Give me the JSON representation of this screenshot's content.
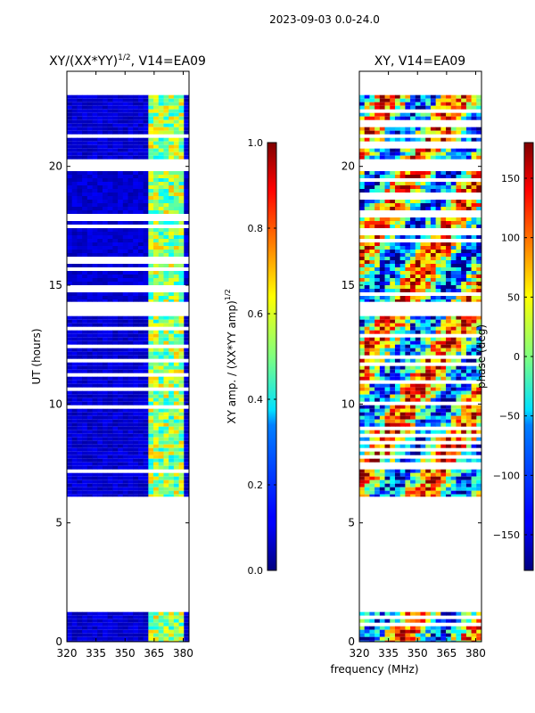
{
  "suptitle": "2023-09-03 0.0-24.0",
  "chart_data": [
    {
      "type": "heatmap",
      "title": "XY/(XX*YY)",
      "title_sup": "1/2",
      "title_suffix": ", V14=EA09",
      "xlabel": "",
      "ylabel": "UT (hours)",
      "xlim": [
        320,
        383
      ],
      "ylim": [
        0,
        24
      ],
      "xticks": [
        320,
        335,
        350,
        365,
        380
      ],
      "yticks": [
        0,
        5,
        10,
        15,
        20
      ],
      "data_ranges_hours": [
        [
          0.0,
          1.4
        ],
        [
          6.1,
          13.7
        ],
        [
          14.3,
          19.8
        ],
        [
          20.3,
          23.0
        ]
      ],
      "high_band_mhz": [
        363,
        381
      ],
      "colorbar": {
        "label": "XY amp. / (XX*YY amp)",
        "label_sup": "1/2",
        "range": [
          0.0,
          1.0
        ],
        "ticks": [
          "0.0",
          "0.2",
          "0.4",
          "0.6",
          "0.8",
          "1.0"
        ],
        "tick_values": [
          0.0,
          0.2,
          0.4,
          0.6,
          0.8,
          1.0
        ]
      }
    },
    {
      "type": "heatmap",
      "title": "XY, V14=EA09",
      "xlabel": "frequency (MHz)",
      "ylabel": "",
      "xlim": [
        320,
        383
      ],
      "ylim": [
        0,
        24
      ],
      "xticks": [
        320,
        335,
        350,
        365,
        380
      ],
      "yticks": [
        0,
        5,
        10,
        15,
        20
      ],
      "data_ranges_hours": [
        [
          0.0,
          1.4
        ],
        [
          6.1,
          13.7
        ],
        [
          14.3,
          19.8
        ],
        [
          20.3,
          23.0
        ]
      ],
      "colorbar": {
        "label": "phase (deg)",
        "range": [
          -180,
          180
        ],
        "ticks": [
          "−150",
          "−100",
          "−50",
          "0",
          "50",
          "100",
          "150"
        ],
        "tick_values": [
          -150,
          -100,
          -50,
          0,
          50,
          100,
          150
        ]
      }
    }
  ]
}
